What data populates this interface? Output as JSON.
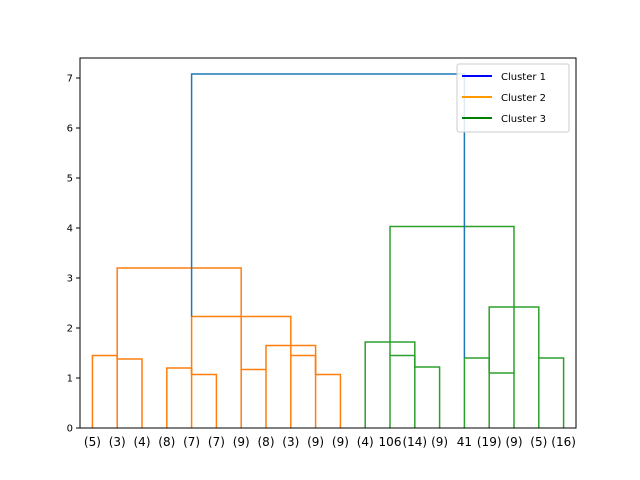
{
  "chart_data": {
    "type": "dendrogram",
    "title": "",
    "xlabel": "",
    "ylabel": "",
    "ylim": [
      0,
      7.4
    ],
    "yticks": [
      0,
      1,
      2,
      3,
      4,
      5,
      6,
      7
    ],
    "leaf_labels": [
      "(5)",
      "(3)",
      "(4)",
      "(8)",
      "(7)",
      "(7)",
      "(9)",
      "(8)",
      "(3)",
      "(9)",
      "(9)",
      "(4)",
      "106",
      "(14)",
      "(9)",
      "41",
      "(19)",
      "(9)",
      "(5)",
      "(16)"
    ],
    "colors": {
      "cluster_1": "#0000ff",
      "cluster_2": "#ff9900",
      "cluster_3": "#008000",
      "link_orange": "#ff7f0e",
      "link_green": "#2ca02c",
      "link_top": "#1f77b4"
    },
    "links": [
      {
        "left": 0,
        "right": 1,
        "height": 1.45,
        "color": "orange"
      },
      {
        "left": 1,
        "right": 2,
        "height": 1.38,
        "color": "orange"
      },
      {
        "left": 3,
        "right": 4,
        "height": 1.2,
        "color": "orange"
      },
      {
        "left": 4,
        "right": 5,
        "height": 1.07,
        "color": "orange"
      },
      {
        "left": 6,
        "right": 7,
        "height": 1.17,
        "color": "orange"
      },
      {
        "left": 8,
        "right": 9,
        "height": 1.45,
        "color": "orange"
      },
      {
        "left": 9,
        "right": 10,
        "height": 1.07,
        "color": "orange"
      },
      {
        "left": 7,
        "right": 9,
        "height": 1.65,
        "color": "orange"
      },
      {
        "left": 4,
        "right": 8,
        "height": 2.23,
        "color": "orange"
      },
      {
        "left": 1,
        "right": 6,
        "height": 3.2,
        "color": "orange"
      },
      {
        "left": 12,
        "right": 13,
        "height": 1.45,
        "color": "green"
      },
      {
        "left": 13,
        "right": 14,
        "height": 1.22,
        "color": "green"
      },
      {
        "left": 11,
        "right": 13,
        "height": 1.72,
        "color": "green"
      },
      {
        "left": 15,
        "right": 16,
        "height": 1.4,
        "color": "green"
      },
      {
        "left": 16,
        "right": 17,
        "height": 1.1,
        "color": "green"
      },
      {
        "left": 18,
        "right": 19,
        "height": 1.4,
        "color": "green"
      },
      {
        "left": 16,
        "right": 18,
        "height": 2.42,
        "color": "green"
      },
      {
        "left": 12,
        "right": 17,
        "height": 4.03,
        "color": "green"
      },
      {
        "left": 4,
        "right": 15,
        "height": 7.08,
        "color": "top"
      }
    ],
    "legend": {
      "position": "top-right",
      "entries": [
        {
          "label": "Cluster 1",
          "color": "#0000ff"
        },
        {
          "label": "Cluster 2",
          "color": "#ff9900"
        },
        {
          "label": "Cluster 3",
          "color": "#008000"
        }
      ]
    }
  }
}
